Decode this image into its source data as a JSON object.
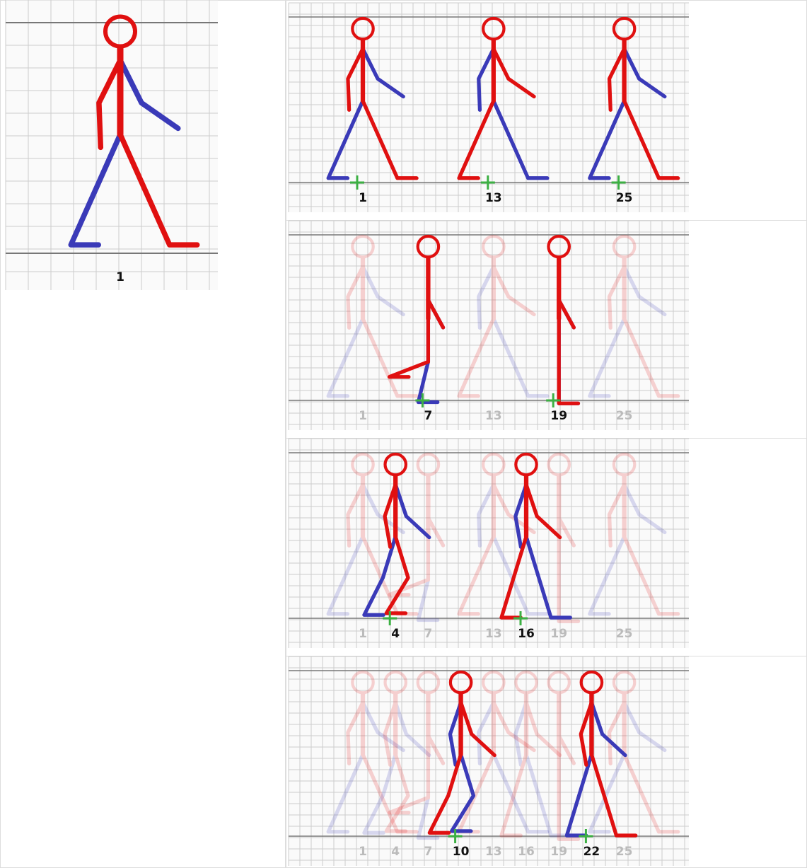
{
  "main_frame": {
    "label": 1
  },
  "rows": [
    {
      "active": [
        1,
        13,
        25
      ],
      "ghost": []
    },
    {
      "active": [
        7,
        19
      ],
      "ghost": [
        1,
        13,
        25
      ]
    },
    {
      "active": [
        4,
        16
      ],
      "ghost": [
        1,
        7,
        13,
        19,
        25
      ]
    },
    {
      "active": [
        10,
        22
      ],
      "ghost": [
        1,
        4,
        7,
        13,
        16,
        19,
        25
      ]
    }
  ]
}
